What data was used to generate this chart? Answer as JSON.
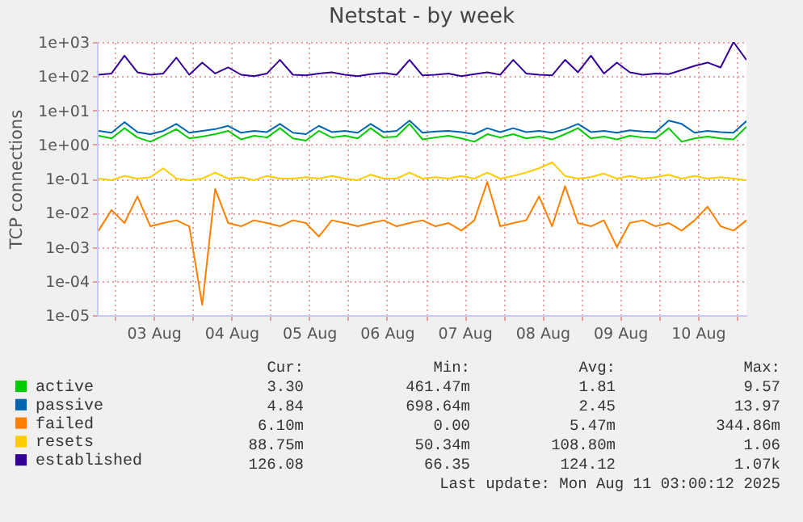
{
  "chart_data": {
    "type": "line",
    "title": "Netstat - by week",
    "ylabel": "TCP connections",
    "x": [
      "2025-08-02T19:00",
      "2025-08-02T23:00",
      "2025-08-03T03:00",
      "2025-08-03T07:00",
      "2025-08-03T11:00",
      "2025-08-03T15:00",
      "2025-08-03T19:00",
      "2025-08-03T23:00",
      "2025-08-04T03:00",
      "2025-08-04T07:00",
      "2025-08-04T11:00",
      "2025-08-04T15:00",
      "2025-08-04T19:00",
      "2025-08-04T23:00",
      "2025-08-05T03:00",
      "2025-08-05T07:00",
      "2025-08-05T11:00",
      "2025-08-05T15:00",
      "2025-08-05T19:00",
      "2025-08-05T23:00",
      "2025-08-06T03:00",
      "2025-08-06T07:00",
      "2025-08-06T11:00",
      "2025-08-06T15:00",
      "2025-08-06T19:00",
      "2025-08-06T23:00",
      "2025-08-07T03:00",
      "2025-08-07T07:00",
      "2025-08-07T11:00",
      "2025-08-07T15:00",
      "2025-08-07T19:00",
      "2025-08-07T23:00",
      "2025-08-08T03:00",
      "2025-08-08T07:00",
      "2025-08-08T11:00",
      "2025-08-08T15:00",
      "2025-08-08T19:00",
      "2025-08-08T23:00",
      "2025-08-09T03:00",
      "2025-08-09T07:00",
      "2025-08-09T11:00",
      "2025-08-09T15:00",
      "2025-08-09T19:00",
      "2025-08-09T23:00",
      "2025-08-10T03:00",
      "2025-08-10T07:00",
      "2025-08-10T11:00",
      "2025-08-10T15:00",
      "2025-08-10T19:00",
      "2025-08-10T23:00",
      "2025-08-11T03:00"
    ],
    "series": [
      {
        "name": "active",
        "color": "#00cc00",
        "values": [
          1.8,
          1.5,
          3,
          1.6,
          1.2,
          1.8,
          2.8,
          1.5,
          1.7,
          2,
          2.5,
          1.4,
          1.8,
          1.6,
          3,
          1.5,
          1.3,
          2.5,
          1.6,
          1.8,
          1.5,
          3,
          1.6,
          1.7,
          4,
          1.4,
          1.6,
          1.8,
          1.5,
          1.2,
          2,
          1.6,
          2,
          1.5,
          1.7,
          1.4,
          2,
          3,
          1.5,
          1.7,
          1.4,
          1.8,
          1.6,
          1.5,
          3,
          1.2,
          1.5,
          1.7,
          1.5,
          1.4,
          3.3
        ]
      },
      {
        "name": "passive",
        "color": "#0066b3",
        "values": [
          2.5,
          2.2,
          4.5,
          2.3,
          2,
          2.5,
          4,
          2.2,
          2.5,
          2.8,
          3.5,
          2.2,
          2.5,
          2.3,
          4,
          2.2,
          2,
          3.5,
          2.3,
          2.5,
          2.2,
          4,
          2.3,
          2.5,
          5,
          2.2,
          2.4,
          2.5,
          2.3,
          2,
          3,
          2.3,
          3,
          2.3,
          2.5,
          2.2,
          2.8,
          4,
          2.3,
          2.5,
          2.2,
          2.6,
          2.4,
          2.3,
          5,
          4,
          2.2,
          2.5,
          2.3,
          2.2,
          4.84
        ]
      },
      {
        "name": "failed",
        "color": "#ff8000",
        "values": [
          0.003,
          0.012,
          0.005,
          0.03,
          0.004,
          0.005,
          0.006,
          0.004,
          2e-05,
          0.05,
          0.005,
          0.004,
          0.006,
          0.005,
          0.004,
          0.006,
          0.005,
          0.002,
          0.006,
          0.005,
          0.004,
          0.005,
          0.006,
          0.004,
          0.005,
          0.006,
          0.004,
          0.005,
          0.003,
          0.006,
          0.08,
          0.004,
          0.005,
          0.006,
          0.03,
          0.004,
          0.06,
          0.005,
          0.004,
          0.006,
          0.001,
          0.005,
          0.006,
          0.004,
          0.005,
          0.003,
          0.006,
          0.015,
          0.004,
          0.003,
          0.006
        ]
      },
      {
        "name": "resets",
        "color": "#ffcc00",
        "values": [
          0.1,
          0.09,
          0.12,
          0.1,
          0.11,
          0.2,
          0.1,
          0.09,
          0.1,
          0.15,
          0.1,
          0.11,
          0.09,
          0.12,
          0.1,
          0.1,
          0.11,
          0.1,
          0.12,
          0.1,
          0.09,
          0.13,
          0.1,
          0.1,
          0.15,
          0.1,
          0.11,
          0.1,
          0.12,
          0.1,
          0.15,
          0.1,
          0.12,
          0.15,
          0.2,
          0.3,
          0.12,
          0.1,
          0.11,
          0.14,
          0.1,
          0.12,
          0.1,
          0.11,
          0.13,
          0.1,
          0.12,
          0.1,
          0.11,
          0.1,
          0.09
        ]
      },
      {
        "name": "established",
        "color": "#330099",
        "values": [
          110,
          120,
          400,
          130,
          110,
          120,
          350,
          110,
          250,
          120,
          180,
          110,
          100,
          120,
          300,
          110,
          105,
          120,
          130,
          110,
          100,
          115,
          125,
          110,
          300,
          105,
          110,
          120,
          100,
          115,
          130,
          110,
          300,
          120,
          110,
          105,
          300,
          130,
          400,
          120,
          250,
          130,
          110,
          120,
          115,
          150,
          200,
          250,
          180,
          1000,
          300
        ]
      }
    ],
    "xlim": [
      "2025-08-02T18:30",
      "2025-08-11T03:00"
    ],
    "xticks": [
      {
        "value": "2025-08-03T00:00",
        "label": null
      },
      {
        "value": "2025-08-03T12:00",
        "label": "03 Aug"
      },
      {
        "value": "2025-08-04T00:00",
        "label": null
      },
      {
        "value": "2025-08-04T12:00",
        "label": "04 Aug"
      },
      {
        "value": "2025-08-05T00:00",
        "label": null
      },
      {
        "value": "2025-08-05T12:00",
        "label": "05 Aug"
      },
      {
        "value": "2025-08-06T00:00",
        "label": null
      },
      {
        "value": "2025-08-06T12:00",
        "label": "06 Aug"
      },
      {
        "value": "2025-08-07T00:00",
        "label": null
      },
      {
        "value": "2025-08-07T12:00",
        "label": "07 Aug"
      },
      {
        "value": "2025-08-08T00:00",
        "label": null
      },
      {
        "value": "2025-08-08T12:00",
        "label": "08 Aug"
      },
      {
        "value": "2025-08-09T00:00",
        "label": null
      },
      {
        "value": "2025-08-09T12:00",
        "label": "09 Aug"
      },
      {
        "value": "2025-08-10T00:00",
        "label": null
      },
      {
        "value": "2025-08-10T12:00",
        "label": "10 Aug"
      },
      {
        "value": "2025-08-11T00:00",
        "label": null
      }
    ],
    "ylim": [
      1e-05,
      1000
    ],
    "yticks": [
      {
        "value": 1e-05,
        "label": "1e-05"
      },
      {
        "value": 0.0001,
        "label": "1e-04"
      },
      {
        "value": 0.001,
        "label": "1e-03"
      },
      {
        "value": 0.01,
        "label": "1e-02"
      },
      {
        "value": 0.1,
        "label": "1e-01"
      },
      {
        "value": 1,
        "label": "1e+00"
      },
      {
        "value": 10,
        "label": "1e+01"
      },
      {
        "value": 100,
        "label": "1e+02"
      },
      {
        "value": 1000,
        "label": "1e+03"
      }
    ],
    "log": "y",
    "grid": true,
    "legend": "bottom left",
    "annotations": [
      "Cur:",
      "Min:",
      "Avg:",
      "Max:",
      "3.30",
      "461.47m",
      "1.81",
      "9.57",
      "4.84",
      "698.64m",
      "2.45",
      "13.97",
      "6.10m",
      "0.00",
      "5.47m",
      "344.86m",
      "88.75m",
      "50.34m",
      "108.80m",
      "1.06",
      "126.08",
      "66.35",
      "124.12",
      "1.07k",
      "Last update: Mon Aug 11 03:00:12 2025"
    ]
  }
}
